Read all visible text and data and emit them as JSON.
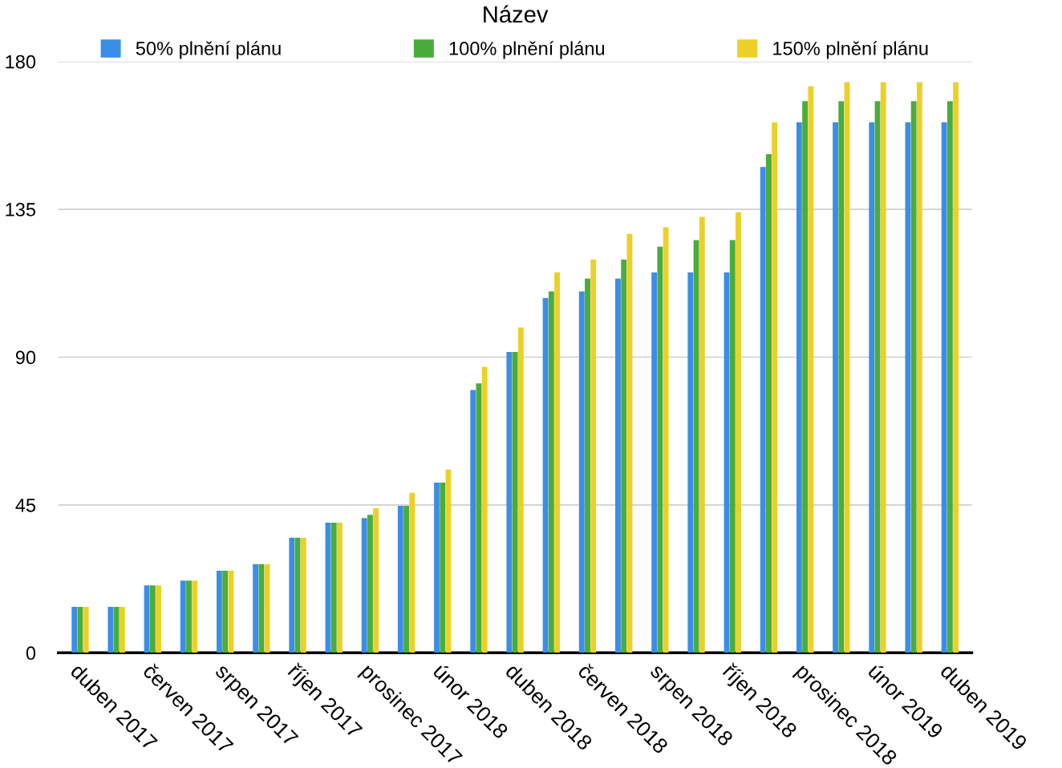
{
  "chart_data": {
    "type": "bar",
    "title": "Název",
    "categories": [
      "duben 2017",
      null,
      "červen 2017",
      null,
      "srpen 2017",
      null,
      "říjen 2017",
      null,
      "prosinec 2017",
      null,
      "únor 2018",
      null,
      "duben 2018",
      null,
      "červen 2018",
      null,
      "srpen 2018",
      null,
      "říjen 2018",
      null,
      "prosinec 2018",
      null,
      "únor 2019",
      null,
      "duben 2019"
    ],
    "series": [
      {
        "name": "50% plnění plánu",
        "color": "#3a8ee6",
        "values": [
          14,
          14,
          20.5,
          22,
          25,
          27,
          35,
          39.6,
          41,
          44.7,
          51.8,
          80,
          91.6,
          108,
          110,
          113.9,
          115.8,
          115.8,
          115.8,
          147.9,
          161.5,
          161.5,
          161.5,
          161.5,
          161.5
        ]
      },
      {
        "name": "100% plnění plánu",
        "color": "#4aac3a",
        "values": [
          14,
          14,
          20.5,
          22,
          25,
          27,
          35,
          39.6,
          42,
          44.7,
          51.8,
          82,
          91.6,
          110,
          113.9,
          119.7,
          123.6,
          125.6,
          125.6,
          151.8,
          167.9,
          167.9,
          167.9,
          167.9,
          167.9
        ]
      },
      {
        "name": "150% plnění plánu",
        "color": "#ecd028",
        "values": [
          14,
          14,
          20.5,
          22,
          25,
          27,
          35,
          39.6,
          44,
          48.7,
          55.8,
          87,
          99,
          115.8,
          119.7,
          127.5,
          129.5,
          132.7,
          134.1,
          161.5,
          172.5,
          173.7,
          173.7,
          173.7,
          173.7
        ]
      }
    ],
    "ylim": [
      0,
      180
    ],
    "yticks": [
      0,
      45,
      90,
      135,
      180
    ],
    "grid": "y",
    "legend": "top"
  }
}
